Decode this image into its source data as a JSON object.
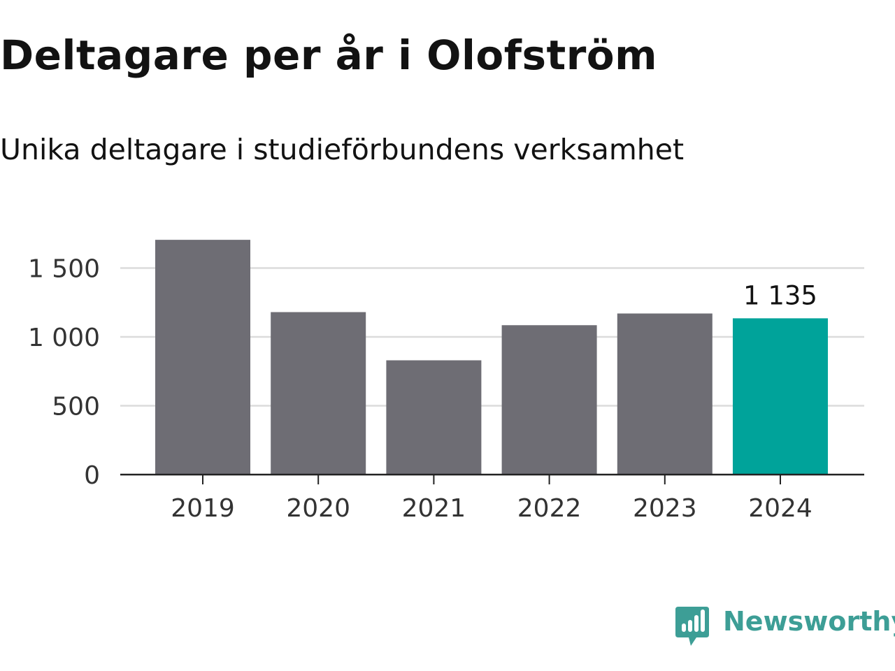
{
  "title": "Deltagare per år i Olofström",
  "subtitle": "Unika deltagare i studieförbundens verksamhet",
  "brand": {
    "name": "Newsworthy",
    "color": "#3d9e96"
  },
  "colors": {
    "bar": "#6e6d74",
    "highlight": "#00a39a",
    "grid": "#dcdcdc",
    "axis": "#222222",
    "text": "#121212",
    "tick_text": "#333333"
  },
  "chart_data": {
    "type": "bar",
    "categories": [
      "2019",
      "2020",
      "2021",
      "2022",
      "2023",
      "2024"
    ],
    "values": [
      1705,
      1180,
      830,
      1085,
      1170,
      1135
    ],
    "highlight_index": 5,
    "data_labels": [
      {
        "index": 5,
        "text": "1 135"
      }
    ],
    "yticks": [
      0,
      500,
      1000,
      1500
    ],
    "ytick_labels": [
      "0",
      "500",
      "1 000",
      "1 500"
    ],
    "ylim": [
      0,
      1750
    ],
    "grid": true,
    "xlabel": "",
    "ylabel": ""
  }
}
